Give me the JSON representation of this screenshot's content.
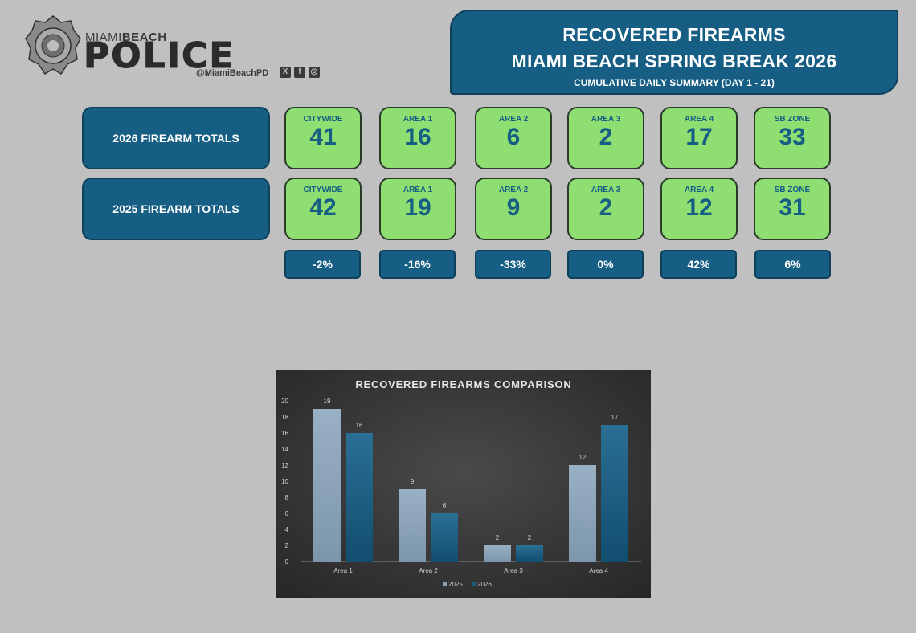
{
  "header": {
    "brand_top_light": "MIAMI",
    "brand_top_bold": "BEACH",
    "brand_main": "POLICE",
    "handle": "@MiamiBeachPD",
    "social_icons": [
      "x-icon",
      "facebook-icon",
      "instagram-icon"
    ]
  },
  "title": {
    "line1": "RECOVERED FIREARMS",
    "line2": "MIAMI BEACH SPRING BREAK 2026",
    "line3": "CUMULATIVE DAILY SUMMARY (DAY 1 - 21)"
  },
  "rows": {
    "r2026": "2026 FIREARM TOTALS",
    "r2025": "2025 FIREARM TOTALS"
  },
  "columns": [
    {
      "label": "CITYWIDE",
      "v2026": "41",
      "v2025": "42",
      "pct": "-2%"
    },
    {
      "label": "AREA 1",
      "v2026": "16",
      "v2025": "19",
      "pct": "-16%"
    },
    {
      "label": "AREA 2",
      "v2026": "6",
      "v2025": "9",
      "pct": "-33%"
    },
    {
      "label": "AREA 3",
      "v2026": "2",
      "v2025": "2",
      "pct": "0%"
    },
    {
      "label": "AREA 4",
      "v2026": "17",
      "v2025": "12",
      "pct": "42%"
    },
    {
      "label": "SB ZONE",
      "v2026": "33",
      "v2025": "31",
      "pct": "6%"
    }
  ],
  "colors": {
    "accent": "#165e84",
    "green": "#8ede72",
    "bar_2025": "#8aa2b8",
    "bar_2026": "#1a5c80"
  },
  "chart_data": {
    "type": "bar",
    "title": "RECOVERED FIREARMS COMPARISON",
    "categories": [
      "Area 1",
      "Area 2",
      "Area 3",
      "Area 4"
    ],
    "series": [
      {
        "name": "2025",
        "values": [
          19,
          9,
          2,
          12
        ]
      },
      {
        "name": "2026",
        "values": [
          16,
          6,
          2,
          17
        ]
      }
    ],
    "ylim": [
      0,
      20
    ],
    "yticks": [
      0,
      2,
      4,
      6,
      8,
      10,
      12,
      14,
      16,
      18,
      20
    ],
    "legend": "bottom",
    "grid": false
  }
}
